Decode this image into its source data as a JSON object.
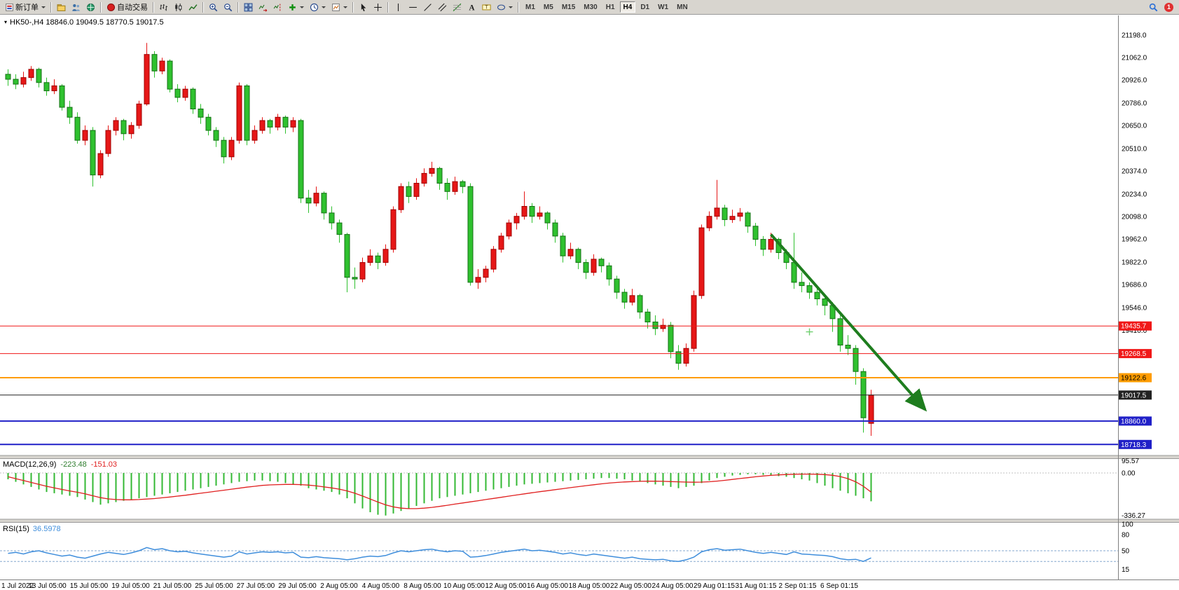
{
  "toolbar": {
    "notification_count": "1",
    "timeframes": {
      "items": [
        "M1",
        "M5",
        "M15",
        "M30",
        "H1",
        "H4",
        "D1",
        "W1",
        "MN"
      ],
      "active": "H4"
    },
    "buttons": [
      {
        "name": "new-order",
        "icon": "order",
        "label": "新订单",
        "dropdown": true
      },
      {
        "type": "sep"
      },
      {
        "name": "profiles",
        "icon": "profiles"
      },
      {
        "name": "market-watch",
        "icon": "market-watch"
      },
      {
        "name": "navigator",
        "icon": "navigator"
      },
      {
        "type": "sep"
      },
      {
        "name": "auto-trading",
        "icon": "autotrade",
        "label": "自动交易"
      },
      {
        "type": "sep"
      },
      {
        "name": "bar-chart",
        "icon": "bar-chart"
      },
      {
        "name": "candlestick-chart",
        "icon": "candlesticks"
      },
      {
        "name": "line-chart",
        "icon": "line-chart"
      },
      {
        "type": "sep"
      },
      {
        "name": "zoom-in",
        "icon": "zoom-in"
      },
      {
        "name": "zoom-out",
        "icon": "zoom-out"
      },
      {
        "type": "sep"
      },
      {
        "name": "tile-windows",
        "icon": "tile-windows"
      },
      {
        "name": "auto-scroll",
        "icon": "auto-scroll"
      },
      {
        "name": "chart-shift",
        "icon": "chart-shift"
      },
      {
        "name": "new-chart",
        "icon": "new-chart",
        "dropdown": true
      },
      {
        "name": "periods",
        "icon": "periods",
        "dropdown": true
      },
      {
        "name": "templates",
        "icon": "templates",
        "dropdown": true
      },
      {
        "type": "sep"
      },
      {
        "name": "cursor",
        "icon": "cursor"
      },
      {
        "name": "crosshair",
        "icon": "crosshair"
      },
      {
        "type": "sep"
      },
      {
        "name": "vertical-line",
        "icon": "vline"
      },
      {
        "name": "horizontal-line",
        "icon": "hline"
      },
      {
        "name": "trendline",
        "icon": "trendline"
      },
      {
        "name": "equidistant-channel",
        "icon": "channel"
      },
      {
        "name": "fibonacci",
        "icon": "fibonacci"
      },
      {
        "name": "text",
        "icon": "text"
      },
      {
        "name": "text-label",
        "icon": "text-label"
      },
      {
        "name": "shapes",
        "icon": "shapes",
        "dropdown": true
      },
      {
        "type": "sep"
      },
      {
        "type": "tf"
      },
      {
        "type": "spacer"
      },
      {
        "name": "search",
        "icon": "search"
      },
      {
        "type": "badge"
      }
    ]
  },
  "chart_data": {
    "type": "candlestick",
    "symbol": "HK50-",
    "timeframe": "H4",
    "info_line": "HK50-,H4 18846.0 19049.5 18770.5 19017.5",
    "ohlc": {
      "open": "18846.0",
      "high": "19049.5",
      "low": "18770.5",
      "close": "19017.5"
    },
    "colors": {
      "up": "#e61717",
      "up_border": "#a00000",
      "down": "#2fc12f",
      "down_border": "#157015"
    },
    "price_axis_labels": [
      "21198.0",
      "21062.0",
      "20926.0",
      "20786.0",
      "20650.0",
      "20510.0",
      "20374.0",
      "20234.0",
      "20098.0",
      "19962.0",
      "19822.0",
      "19686.0",
      "19546.0",
      "19410.0"
    ],
    "hlines": [
      {
        "label": "19435.7",
        "price": 19435.7,
        "color": "#f01818",
        "width": 1,
        "text_color": "#ffffff"
      },
      {
        "label": "19268.5",
        "price": 19268.5,
        "color": "#f01818",
        "width": 1,
        "text_color": "#ffffff"
      },
      {
        "label": "19122.6",
        "price": 19122.6,
        "color": "#ff9c00",
        "width": 2,
        "text_color": "#000000"
      },
      {
        "label": "19017.5",
        "price": 19017.5,
        "color": "#222222",
        "width": 1,
        "text_color": "#ffffff"
      },
      {
        "label": "18860.0",
        "price": 18860.0,
        "color": "#2020c8",
        "width": 2,
        "text_color": "#ffffff"
      },
      {
        "label": "18718.3",
        "price": 18718.3,
        "color": "#2020c8",
        "width": 2,
        "text_color": "#ffffff"
      }
    ],
    "trend_arrow": {
      "from_index": 99,
      "from_price": 19990,
      "to_index": 119,
      "to_price": 18930,
      "color": "#1e7d1e"
    },
    "crosshair_marker": {
      "index": 104,
      "price": 19400,
      "color": "#6fcf6f"
    },
    "candles": [
      [
        20960,
        20990,
        20890,
        20930
      ],
      [
        20930,
        20960,
        20870,
        20900
      ],
      [
        20900,
        20975,
        20880,
        20940
      ],
      [
        20940,
        21010,
        20920,
        20990
      ],
      [
        20990,
        21000,
        20880,
        20910
      ],
      [
        20910,
        20940,
        20830,
        20860
      ],
      [
        20860,
        20930,
        20840,
        20890
      ],
      [
        20890,
        20900,
        20740,
        20760
      ],
      [
        20760,
        20800,
        20660,
        20700
      ],
      [
        20700,
        20730,
        20540,
        20560
      ],
      [
        20560,
        20650,
        20530,
        20620
      ],
      [
        20620,
        20640,
        20280,
        20350
      ],
      [
        20350,
        20500,
        20330,
        20480
      ],
      [
        20480,
        20650,
        20460,
        20620
      ],
      [
        20620,
        20700,
        20590,
        20680
      ],
      [
        20680,
        20690,
        20560,
        20600
      ],
      [
        20600,
        20670,
        20570,
        20650
      ],
      [
        20650,
        20800,
        20630,
        20780
      ],
      [
        20780,
        21150,
        20770,
        21080
      ],
      [
        21080,
        21100,
        20940,
        20980
      ],
      [
        20980,
        21060,
        20960,
        21040
      ],
      [
        21040,
        21050,
        20850,
        20870
      ],
      [
        20870,
        20900,
        20790,
        20820
      ],
      [
        20820,
        20890,
        20800,
        20870
      ],
      [
        20870,
        20880,
        20720,
        20750
      ],
      [
        20750,
        20780,
        20660,
        20700
      ],
      [
        20700,
        20720,
        20590,
        20620
      ],
      [
        20620,
        20640,
        20520,
        20560
      ],
      [
        20560,
        20580,
        20420,
        20460
      ],
      [
        20460,
        20580,
        20440,
        20560
      ],
      [
        20560,
        20910,
        20540,
        20890
      ],
      [
        20890,
        20900,
        20530,
        20560
      ],
      [
        20560,
        20650,
        20540,
        20620
      ],
      [
        20620,
        20700,
        20600,
        20680
      ],
      [
        20680,
        20690,
        20600,
        20640
      ],
      [
        20640,
        20720,
        20620,
        20700
      ],
      [
        20700,
        20710,
        20600,
        20640
      ],
      [
        20640,
        20700,
        20610,
        20680
      ],
      [
        20680,
        20690,
        20180,
        20210
      ],
      [
        20210,
        20260,
        20120,
        20180
      ],
      [
        20180,
        20280,
        20160,
        20240
      ],
      [
        20240,
        20250,
        20080,
        20120
      ],
      [
        20120,
        20160,
        20020,
        20060
      ],
      [
        20060,
        20080,
        19940,
        19990
      ],
      [
        19990,
        20000,
        19640,
        19730
      ],
      [
        19730,
        19790,
        19660,
        19720
      ],
      [
        19720,
        19850,
        19700,
        19820
      ],
      [
        19820,
        19900,
        19800,
        19860
      ],
      [
        19860,
        19880,
        19780,
        19820
      ],
      [
        19820,
        19930,
        19800,
        19900
      ],
      [
        19900,
        20160,
        19880,
        20140
      ],
      [
        20140,
        20300,
        20120,
        20280
      ],
      [
        20280,
        20310,
        20180,
        20220
      ],
      [
        20220,
        20330,
        20200,
        20300
      ],
      [
        20300,
        20390,
        20280,
        20360
      ],
      [
        20360,
        20430,
        20340,
        20390
      ],
      [
        20390,
        20400,
        20260,
        20300
      ],
      [
        20300,
        20330,
        20200,
        20250
      ],
      [
        20250,
        20340,
        20230,
        20310
      ],
      [
        20310,
        20320,
        20240,
        20280
      ],
      [
        20280,
        20300,
        19680,
        19700
      ],
      [
        19700,
        19780,
        19660,
        19730
      ],
      [
        19730,
        19800,
        19700,
        19780
      ],
      [
        19780,
        19920,
        19760,
        19900
      ],
      [
        19900,
        20000,
        19880,
        19980
      ],
      [
        19980,
        20080,
        19960,
        20060
      ],
      [
        20060,
        20120,
        20020,
        20100
      ],
      [
        20100,
        20250,
        20080,
        20160
      ],
      [
        20160,
        20180,
        20060,
        20100
      ],
      [
        20100,
        20160,
        20080,
        20120
      ],
      [
        20120,
        20130,
        20020,
        20060
      ],
      [
        20060,
        20080,
        19940,
        19980
      ],
      [
        19980,
        20000,
        19820,
        19860
      ],
      [
        19860,
        19940,
        19840,
        19900
      ],
      [
        19900,
        19910,
        19780,
        19820
      ],
      [
        19820,
        19840,
        19720,
        19760
      ],
      [
        19760,
        19870,
        19740,
        19840
      ],
      [
        19840,
        19850,
        19760,
        19800
      ],
      [
        19800,
        19820,
        19680,
        19720
      ],
      [
        19720,
        19740,
        19600,
        19640
      ],
      [
        19640,
        19660,
        19540,
        19580
      ],
      [
        19580,
        19660,
        19560,
        19620
      ],
      [
        19620,
        19630,
        19480,
        19520
      ],
      [
        19520,
        19540,
        19420,
        19460
      ],
      [
        19460,
        19500,
        19380,
        19420
      ],
      [
        19420,
        19480,
        19400,
        19440
      ],
      [
        19440,
        19460,
        19240,
        19280
      ],
      [
        19280,
        19320,
        19170,
        19210
      ],
      [
        19210,
        19330,
        19190,
        19300
      ],
      [
        19300,
        19650,
        19280,
        19620
      ],
      [
        19620,
        20050,
        19600,
        20030
      ],
      [
        20030,
        20130,
        20010,
        20100
      ],
      [
        20100,
        20320,
        20080,
        20150
      ],
      [
        20150,
        20170,
        20040,
        20080
      ],
      [
        20080,
        20140,
        20060,
        20100
      ],
      [
        20100,
        20150,
        20070,
        20120
      ],
      [
        20120,
        20130,
        20000,
        20040
      ],
      [
        20040,
        20060,
        19920,
        19960
      ],
      [
        19960,
        19980,
        19860,
        19900
      ],
      [
        19900,
        20000,
        19880,
        19960
      ],
      [
        19960,
        19970,
        19840,
        19880
      ],
      [
        19880,
        19900,
        19780,
        19820
      ],
      [
        19820,
        20000,
        19660,
        19700
      ],
      [
        19700,
        19760,
        19640,
        19680
      ],
      [
        19680,
        19700,
        19600,
        19640
      ],
      [
        19640,
        19680,
        19560,
        19600
      ],
      [
        19600,
        19620,
        19500,
        19560
      ],
      [
        19560,
        19580,
        19400,
        19480
      ],
      [
        19480,
        19500,
        19280,
        19320
      ],
      [
        19320,
        19380,
        19260,
        19300
      ],
      [
        19300,
        19320,
        19080,
        19160
      ],
      [
        19160,
        19180,
        18790,
        18880
      ],
      [
        18846,
        19049.5,
        18770.5,
        19017.5
      ]
    ],
    "macd": {
      "label": "MACD(12,26,9)",
      "values": [
        "-223.48",
        "-151.03"
      ],
      "scale_labels": [
        "95.57",
        "0.00",
        "-336.27"
      ],
      "colors": {
        "histogram": "#33b833",
        "histogram_label": "#2e7d2e",
        "signal": "#e02020"
      },
      "histogram": [
        -50,
        -70,
        -90,
        -110,
        -130,
        -150,
        -160,
        -170,
        -180,
        -190,
        -210,
        -230,
        -250,
        -240,
        -230,
        -220,
        -210,
        -200,
        -190,
        -180,
        -170,
        -160,
        -150,
        -140,
        -130,
        -120,
        -110,
        -100,
        -90,
        -80,
        -70,
        -65,
        -60,
        -60,
        -65,
        -70,
        -80,
        -90,
        -100,
        -120,
        -130,
        -140,
        -150,
        -170,
        -200,
        -240,
        -280,
        -310,
        -330,
        -336,
        -320,
        -300,
        -280,
        -260,
        -240,
        -220,
        -200,
        -190,
        -180,
        -170,
        -160,
        -150,
        -140,
        -130,
        -120,
        -110,
        -100,
        -90,
        -85,
        -80,
        -75,
        -70,
        -65,
        -60,
        -55,
        -50,
        -45,
        -40,
        -40,
        -45,
        -50,
        -60,
        -70,
        -80,
        -90,
        -100,
        -110,
        -120,
        -110,
        -100,
        -80,
        -60,
        -40,
        -30,
        -20,
        -15,
        -10,
        -10,
        -15,
        -20,
        -25,
        -30,
        -40,
        -50,
        -60,
        -80,
        -100,
        -120,
        -140,
        -160,
        -180,
        -200,
        -223.48
      ],
      "signal": [
        -30,
        -45,
        -60,
        -75,
        -90,
        -105,
        -118,
        -130,
        -142,
        -152,
        -165,
        -180,
        -195,
        -205,
        -210,
        -212,
        -212,
        -210,
        -206,
        -202,
        -196,
        -190,
        -183,
        -176,
        -168,
        -160,
        -152,
        -144,
        -136,
        -128,
        -120,
        -112,
        -105,
        -98,
        -94,
        -92,
        -90,
        -90,
        -92,
        -96,
        -102,
        -110,
        -118,
        -128,
        -142,
        -160,
        -182,
        -206,
        -230,
        -252,
        -268,
        -278,
        -282,
        -282,
        -278,
        -272,
        -264,
        -255,
        -246,
        -237,
        -228,
        -219,
        -210,
        -201,
        -192,
        -183,
        -174,
        -165,
        -156,
        -148,
        -140,
        -132,
        -124,
        -116,
        -108,
        -100,
        -93,
        -86,
        -80,
        -75,
        -71,
        -68,
        -66,
        -65,
        -65,
        -66,
        -68,
        -70,
        -72,
        -73,
        -72,
        -69,
        -64,
        -58,
        -51,
        -44,
        -37,
        -30,
        -24,
        -19,
        -15,
        -12,
        -10,
        -9,
        -9,
        -10,
        -13,
        -18,
        -28,
        -45,
        -70,
        -105,
        -151.03
      ]
    },
    "rsi": {
      "label": "RSI(15)",
      "value": "36.5978",
      "scale_labels": [
        "100",
        "80",
        "50",
        "15"
      ],
      "levels": [
        50,
        30
      ],
      "color": "#3f8edc",
      "values": [
        45,
        47,
        44,
        48,
        50,
        46,
        43,
        40,
        42,
        38,
        36,
        40,
        44,
        47,
        45,
        43,
        46,
        50,
        56,
        52,
        54,
        50,
        48,
        49,
        46,
        44,
        42,
        40,
        38,
        40,
        48,
        44,
        46,
        48,
        47,
        48,
        46,
        47,
        38,
        37,
        39,
        37,
        36,
        35,
        33,
        35,
        38,
        40,
        39,
        41,
        46,
        50,
        48,
        50,
        52,
        53,
        50,
        48,
        50,
        49,
        38,
        39,
        41,
        44,
        47,
        49,
        51,
        53,
        50,
        51,
        49,
        47,
        44,
        46,
        43,
        41,
        44,
        42,
        40,
        38,
        36,
        38,
        35,
        34,
        33,
        34,
        31,
        30,
        33,
        38,
        48,
        52,
        54,
        51,
        52,
        53,
        50,
        47,
        45,
        47,
        45,
        43,
        48,
        44,
        43,
        42,
        41,
        39,
        35,
        33,
        34,
        30,
        36.5978
      ]
    },
    "time_axis_labels": [
      "1 Jul 2022",
      "13 Jul 05:00",
      "15 Jul 05:00",
      "19 Jul 05:00",
      "21 Jul 05:00",
      "25 Jul 05:00",
      "27 Jul 05:00",
      "29 Jul 05:00",
      "2 Aug 05:00",
      "4 Aug 05:00",
      "8 Aug 05:00",
      "10 Aug 05:00",
      "12 Aug 05:00",
      "16 Aug 05:00",
      "18 Aug 05:00",
      "22 Aug 05:00",
      "24 Aug 05:00",
      "29 Aug 01:15",
      "31 Aug 01:15",
      "2 Sep 01:15",
      "6 Sep 01:15"
    ]
  }
}
